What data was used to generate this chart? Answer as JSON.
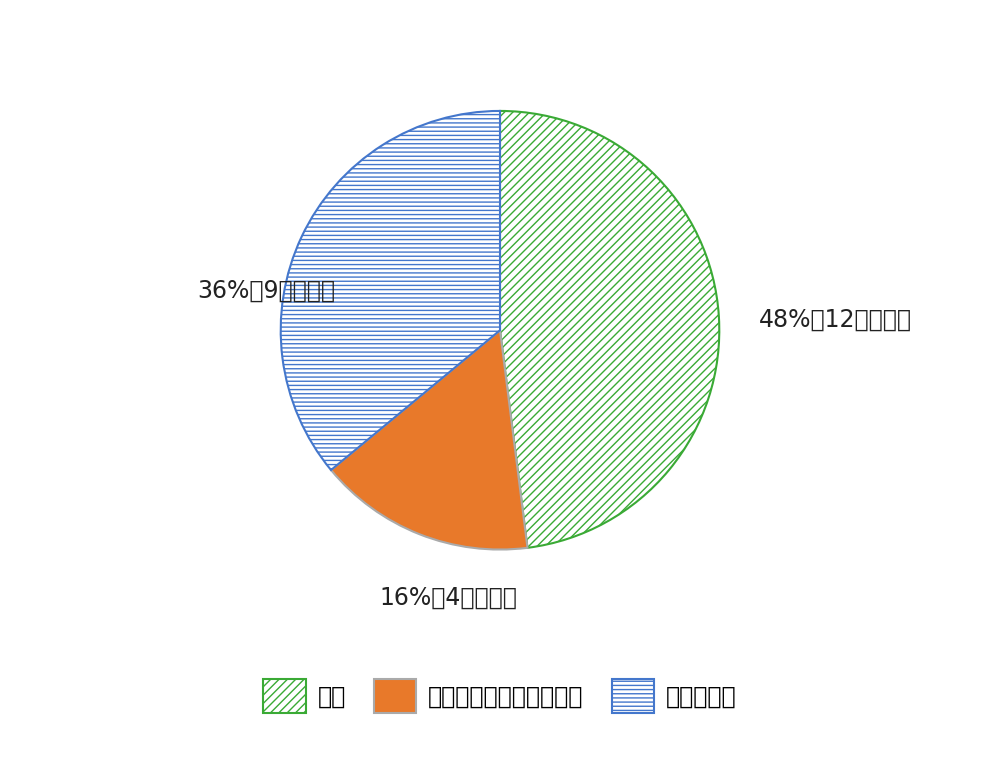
{
  "slices": [
    48,
    16,
    36
  ],
  "labels": [
    "農場",
    "貴蔵・加工・製造・流通",
    "小売・消費"
  ],
  "annotations": [
    "48%（12億トン）",
    "16%（4億トン）",
    "36%（9億トン）"
  ],
  "farm_facecolor": "#ffffff",
  "farm_hatch": "////",
  "farm_edgecolor": "#3aaa35",
  "storage_facecolor": "#e8792a",
  "storage_edgecolor": "#888888",
  "retail_facecolor": "#ffffff",
  "retail_hatch": "----",
  "retail_edgecolor": "#4477cc",
  "background_color": "#ffffff",
  "start_angle": 90,
  "counterclock": false,
  "annotation_fontsize": 17,
  "legend_fontsize": 17,
  "pie_border_color": "#aaaaaa",
  "annotation_color": "#222222"
}
